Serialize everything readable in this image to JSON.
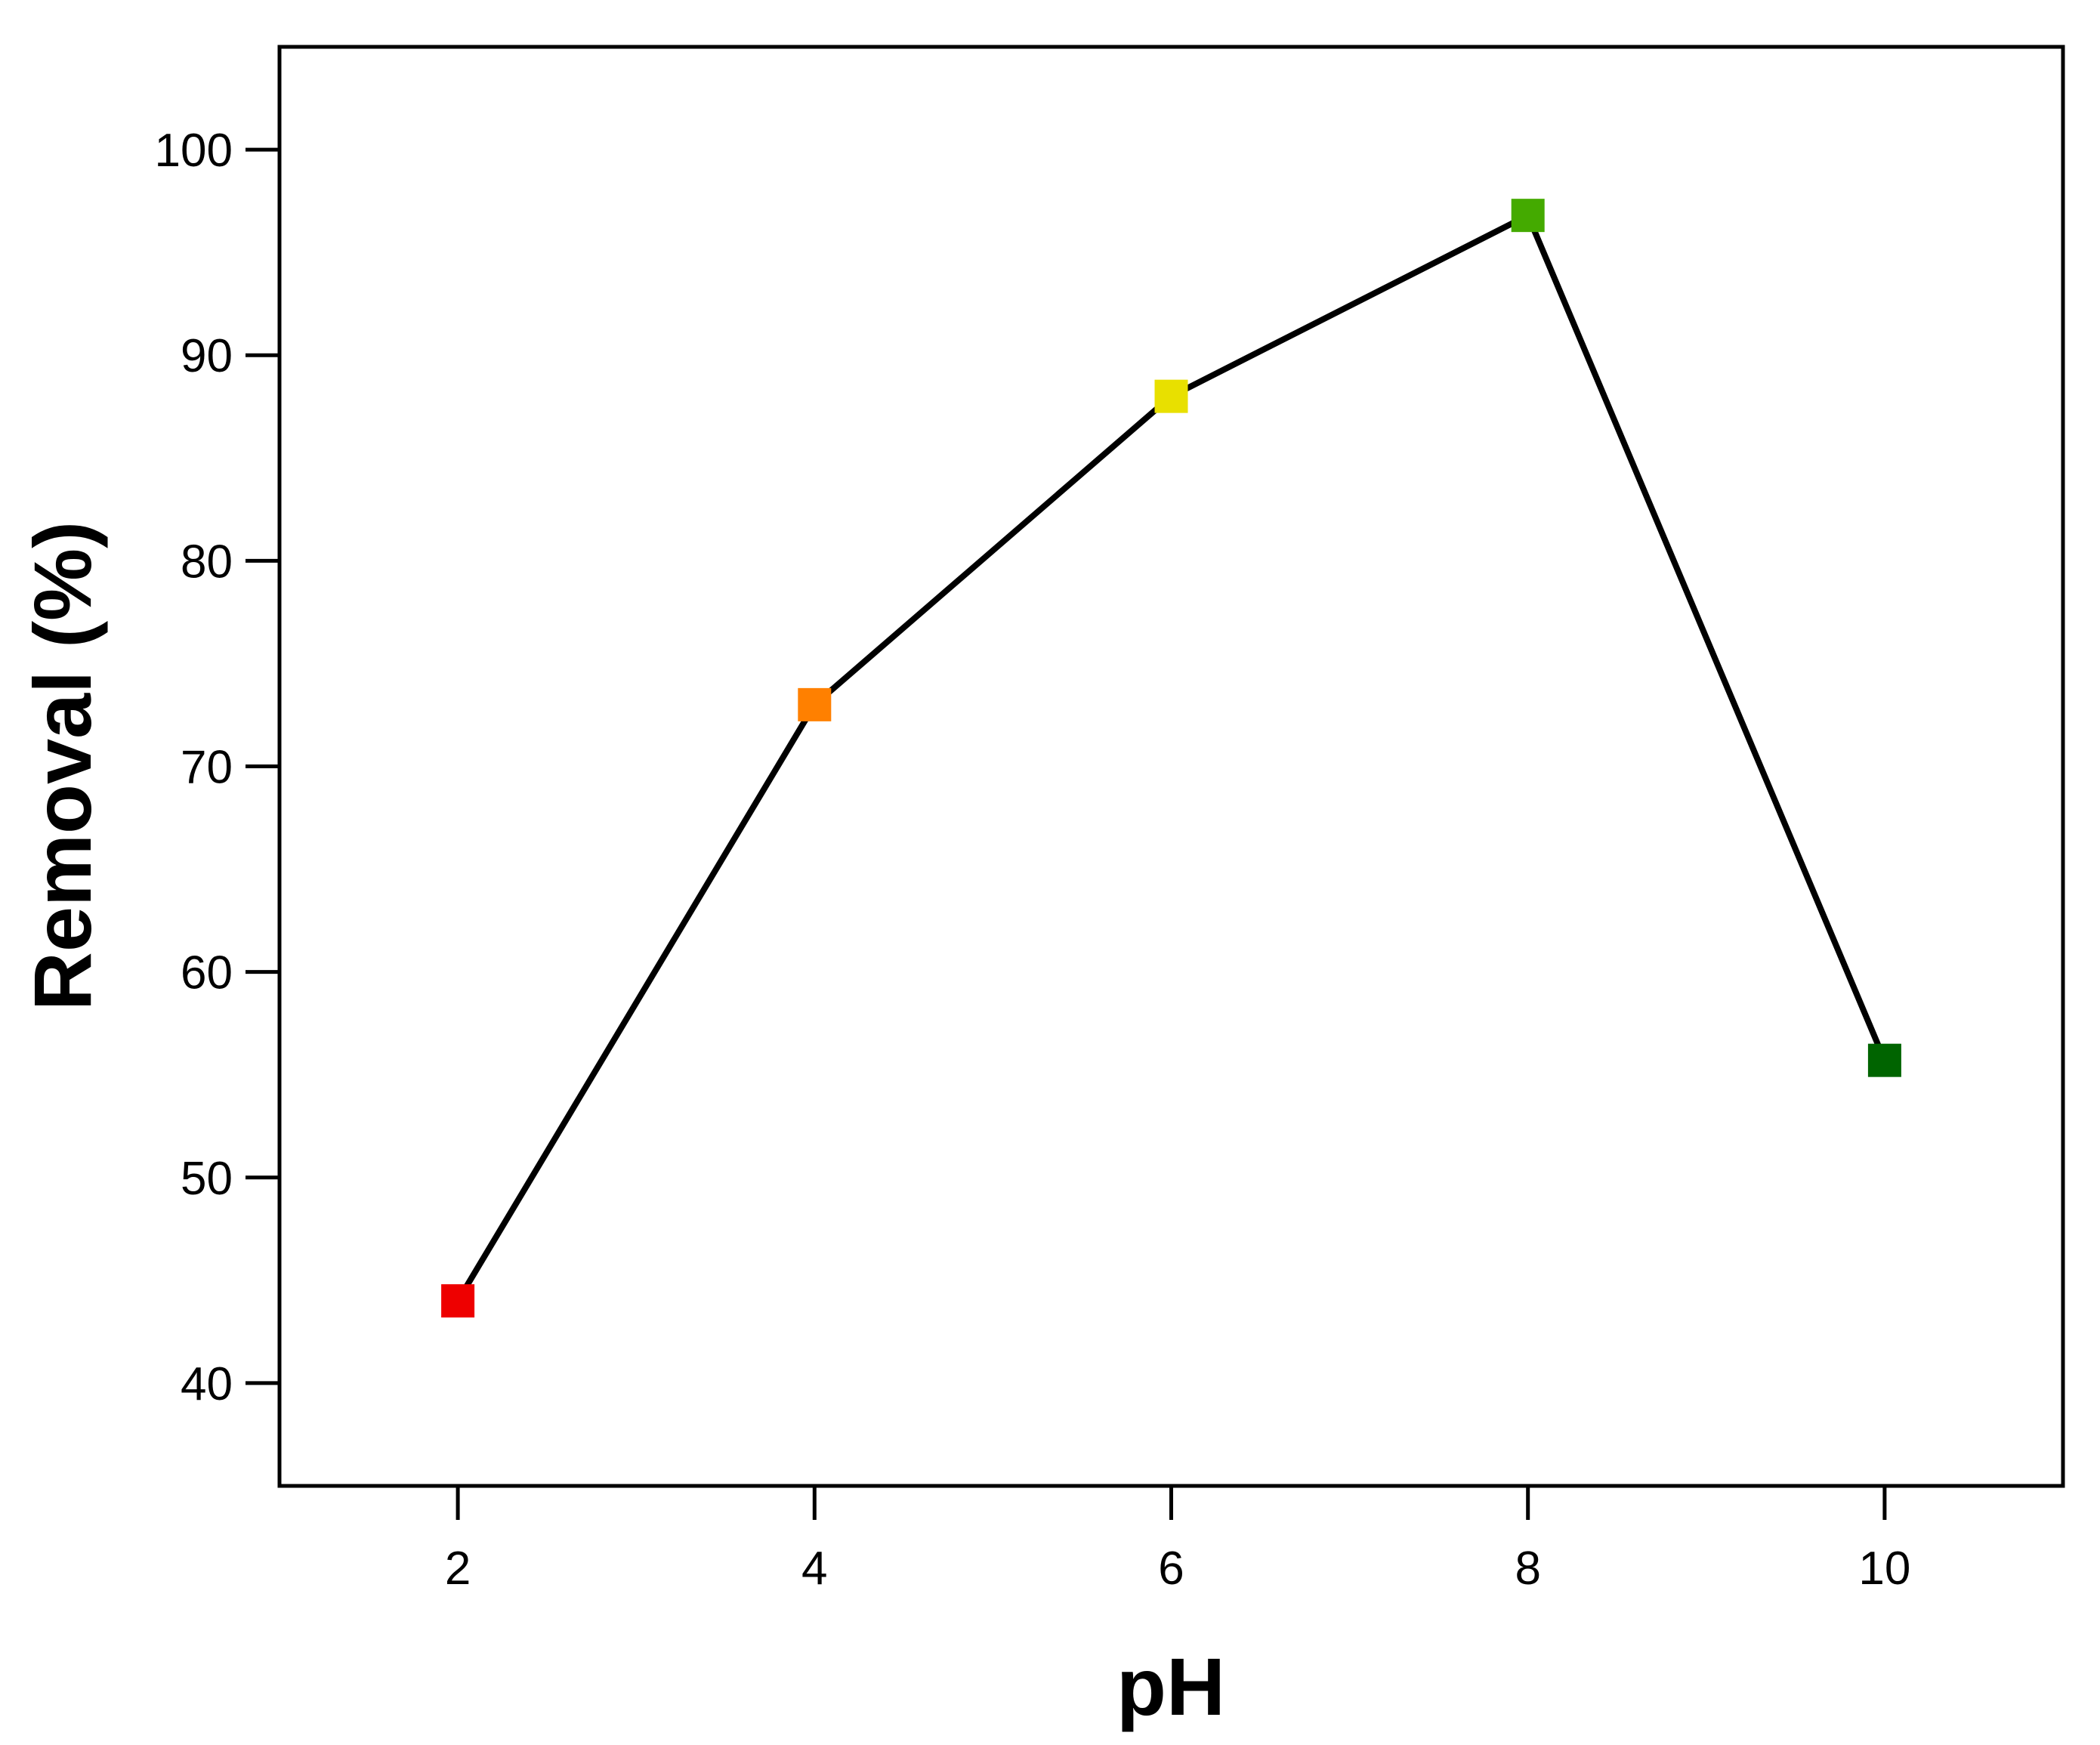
{
  "chart_data": {
    "type": "line",
    "title": "",
    "xlabel": "pH",
    "ylabel": "Removal (%)",
    "xlim": [
      1,
      11
    ],
    "ylim": [
      35,
      105
    ],
    "x_ticks": [
      "2",
      "4",
      "6",
      "8",
      "10"
    ],
    "y_ticks": [
      "40",
      "50",
      "60",
      "70",
      "80",
      "90",
      "100"
    ],
    "grid": false,
    "legend": "none",
    "line_color": "#000000",
    "marker": "square",
    "x": [
      2,
      4,
      6,
      8,
      10
    ],
    "y": [
      44,
      73,
      88,
      96.8,
      55.7
    ],
    "point_colors": [
      "#ee0000",
      "#ff8000",
      "#e8e000",
      "#44aa00",
      "#006400"
    ]
  }
}
